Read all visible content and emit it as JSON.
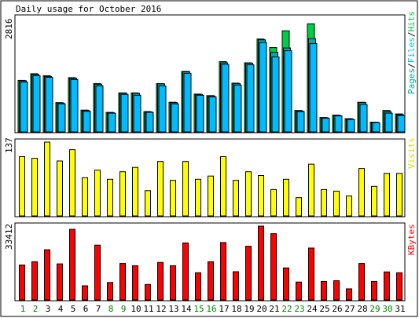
{
  "chart_data": {
    "type": "bar",
    "title": "Daily usage for October 2016",
    "colors": {
      "hits": "#00cc44",
      "files": "#00bbff",
      "pages": "#00aaaa",
      "visits": "#ffff00",
      "kbytes": "#ff0000",
      "weekday_label": "#000000",
      "weekend_label": "#008800",
      "frame": "#000000",
      "background": "#ffffff"
    },
    "days": [
      "1",
      "2",
      "3",
      "4",
      "5",
      "6",
      "7",
      "8",
      "9",
      "10",
      "11",
      "12",
      "13",
      "14",
      "15",
      "16",
      "17",
      "18",
      "19",
      "20",
      "21",
      "22",
      "23",
      "24",
      "25",
      "26",
      "27",
      "28",
      "29",
      "30",
      "31"
    ],
    "weekend_days": [
      "1",
      "2",
      "8",
      "9",
      "15",
      "16",
      "22",
      "23",
      "29",
      "30"
    ],
    "panels": [
      {
        "id": "usage",
        "ylabel_max": "2816",
        "ymax": 2816,
        "legend": [
          "Pages",
          "Files",
          "Hits"
        ],
        "legend_separator": "/",
        "series": [
          {
            "name": "Hits",
            "values": [
              1320,
              1490,
              1440,
              750,
              1390,
              560,
              1240,
              500,
              1000,
              1000,
              520,
              1240,
              760,
              1550,
              970,
              930,
              1800,
              1250,
              1770,
              2380,
              2160,
              2590,
              550,
              2770,
              370,
              430,
              340,
              760,
              250,
              550,
              460
            ]
          },
          {
            "name": "Files",
            "values": [
              1280,
              1440,
              1400,
              720,
              1340,
              530,
              1180,
              480,
              960,
              940,
              500,
              1180,
              720,
              1500,
              940,
              900,
              1730,
              1200,
              1720,
              2290,
              1920,
              2080,
              520,
              2260,
              350,
              410,
              320,
              700,
              240,
              480,
              420
            ]
          },
          {
            "name": "Pages",
            "values": [
              1310,
              1470,
              1420,
              740,
              1370,
              550,
              1220,
              490,
              990,
              990,
              510,
              1230,
              750,
              1540,
              960,
              920,
              1770,
              1240,
              1760,
              2360,
              2040,
              2150,
              540,
              2390,
              360,
              420,
              330,
              750,
              245,
              520,
              440
            ]
          }
        ]
      },
      {
        "id": "visits",
        "ylabel_max": "137",
        "ymax": 137,
        "legend": [
          "Visits"
        ],
        "series": [
          {
            "name": "Visits",
            "values": [
              110,
              107,
              137,
              102,
              123,
              71,
              85,
              68,
              82,
              90,
              47,
              101,
              66,
              101,
              68,
              74,
              110,
              66,
              82,
              75,
              49,
              68,
              34,
              96,
              49,
              46,
              37,
              88,
              55,
              79,
              79
            ]
          }
        ]
      },
      {
        "id": "kbytes",
        "ylabel_max": "33412",
        "ymax": 33412,
        "legend": [
          "KBytes"
        ],
        "series": [
          {
            "name": "KBytes",
            "values": [
              15800,
              17300,
              22700,
              16300,
              32000,
              6400,
              24800,
              7900,
              16500,
              15500,
              7000,
              17000,
              15500,
              25800,
              12300,
              17300,
              26000,
              12800,
              24300,
              33400,
              30000,
              14500,
              8100,
              23500,
              8400,
              8700,
              5000,
              16500,
              8400,
              12700,
              12300
            ]
          }
        ]
      }
    ]
  }
}
